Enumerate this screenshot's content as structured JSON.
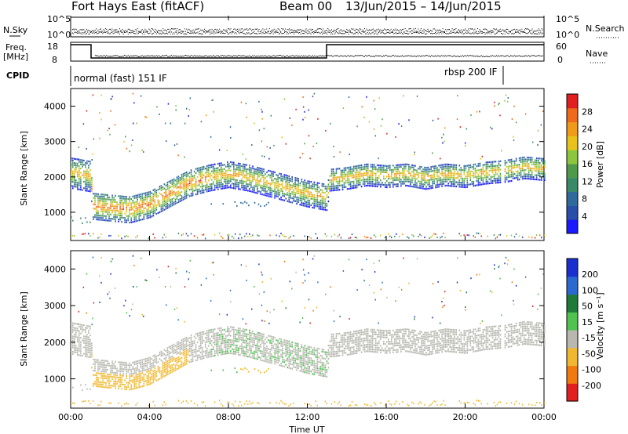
{
  "header": {
    "station": "Fort Hays East (fitACF)",
    "beam": "Beam 00",
    "date_range": "13/Jun/2015 – 14/Jun/2015"
  },
  "strips": {
    "nsky_label": "N.Sky",
    "nsky_ticks": [
      "10^5",
      "10^0"
    ],
    "nsearch_label": "N.Search",
    "nsearch_ticks": [
      "10^5",
      "10^0"
    ],
    "freq_label": "Freq.",
    "freq_unit": "[MHz]",
    "freq_ticks": [
      "18",
      "8"
    ],
    "nave_label": "Nave",
    "nave_ticks": [
      "60",
      "0"
    ],
    "cpid_label": "CPID",
    "cpid_segments": [
      {
        "label": "normal (fast) 151 IF"
      },
      {
        "label": "rbsp 200 IF"
      }
    ]
  },
  "chart_data": [
    {
      "type": "heatmap",
      "name": "power",
      "ylabel": "Slant Range [km]",
      "xlabel": "",
      "ylim": [
        200,
        4500
      ],
      "yticks": [
        "1000",
        "2000",
        "3000",
        "4000"
      ],
      "xticks": [
        "00:00",
        "04:00",
        "08:00",
        "12:00",
        "16:00",
        "20:00",
        "00:00"
      ],
      "colorbar": {
        "label": "Power [dB]",
        "ticks": [
          "4",
          "8",
          "12",
          "16",
          "20",
          "24",
          "28"
        ],
        "colors": [
          "#1a1aff",
          "#2a4fa8",
          "#2e6b9c",
          "#3a8a6a",
          "#4f9a4a",
          "#8cc63f",
          "#e6c21a",
          "#f09a1a",
          "#ef6a1a",
          "#e02020"
        ]
      },
      "echo_band_center_km": [
        {
          "t": 0.0,
          "r": 2100
        },
        {
          "t": 1.0,
          "r": 2000
        },
        {
          "t": 1.1,
          "r": 1150
        },
        {
          "t": 2.0,
          "r": 1100
        },
        {
          "t": 3.0,
          "r": 1050
        },
        {
          "t": 4.0,
          "r": 1200
        },
        {
          "t": 5.0,
          "r": 1500
        },
        {
          "t": 6.0,
          "r": 1800
        },
        {
          "t": 7.0,
          "r": 1950
        },
        {
          "t": 8.0,
          "r": 2050
        },
        {
          "t": 9.0,
          "r": 1950
        },
        {
          "t": 10.0,
          "r": 1800
        },
        {
          "t": 11.0,
          "r": 1650
        },
        {
          "t": 12.0,
          "r": 1500
        },
        {
          "t": 13.0,
          "r": 1400
        },
        {
          "t": 13.1,
          "r": 1900
        },
        {
          "t": 14.0,
          "r": 1950
        },
        {
          "t": 15.0,
          "r": 2050
        },
        {
          "t": 16.0,
          "r": 2000
        },
        {
          "t": 17.0,
          "r": 2050
        },
        {
          "t": 18.0,
          "r": 1950
        },
        {
          "t": 19.0,
          "r": 2050
        },
        {
          "t": 20.0,
          "r": 2000
        },
        {
          "t": 21.0,
          "r": 2100
        },
        {
          "t": 22.0,
          "r": 2150
        },
        {
          "t": 23.0,
          "r": 2250
        },
        {
          "t": 24.0,
          "r": 2200
        }
      ]
    },
    {
      "type": "heatmap",
      "name": "velocity",
      "ylabel": "Slant Range [km]",
      "xlabel": "Time UT",
      "ylim": [
        200,
        4500
      ],
      "yticks": [
        "1000",
        "2000",
        "3000",
        "4000"
      ],
      "xticks": [
        "00:00",
        "04:00",
        "08:00",
        "12:00",
        "16:00",
        "20:00",
        "00:00"
      ],
      "colorbar": {
        "label": "Velocity [m s⁻¹]",
        "ticks": [
          "200",
          "100",
          "50",
          "15",
          "-15",
          "-50",
          "-100",
          "-200"
        ],
        "colors": [
          "#1a2fd0",
          "#2a6ad0",
          "#1f7a3a",
          "#4fc24f",
          "#b8b8b0",
          "#f0b830",
          "#f07a10",
          "#e02020"
        ]
      }
    }
  ],
  "colors": {
    "ground_scatter": "#b8b8b0",
    "accent_red": "#e02020"
  }
}
